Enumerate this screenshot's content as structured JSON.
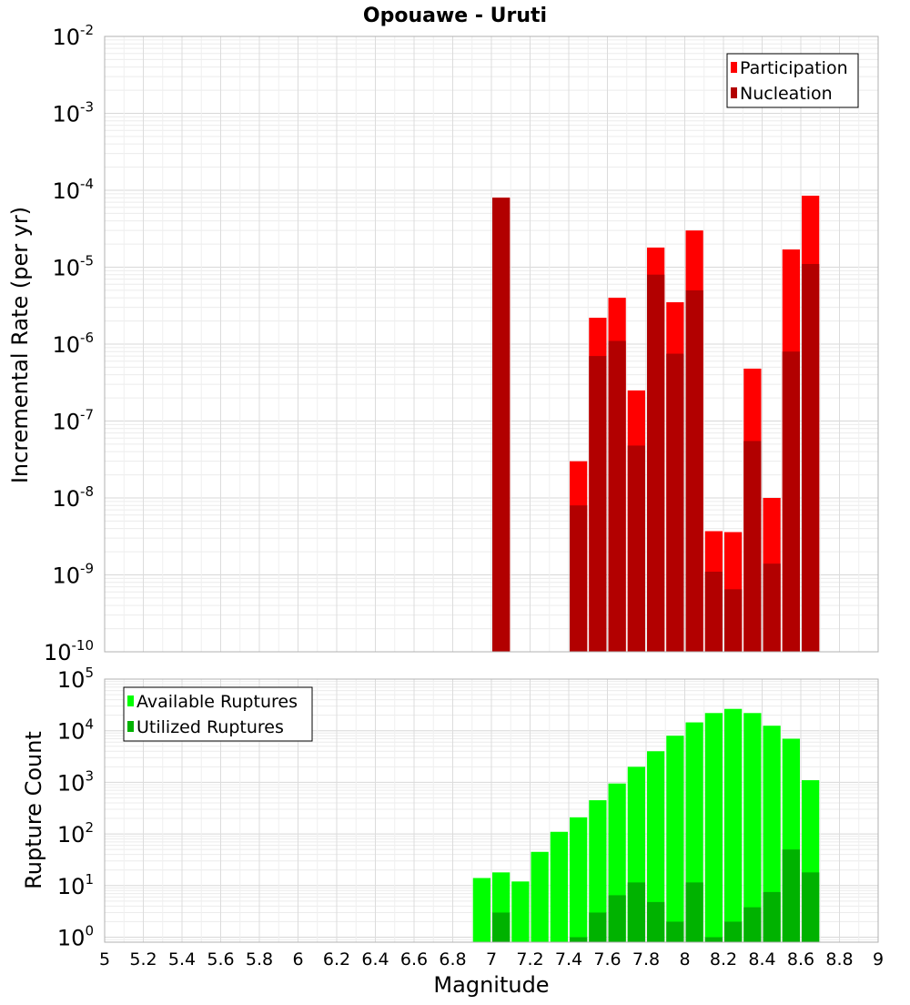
{
  "chart_data": [
    {
      "type": "bar",
      "title": "Opouawe - Uruti",
      "ylabel": "Incremental Rate (per yr)",
      "xlim": [
        5,
        9
      ],
      "ylim": [
        1e-10,
        0.01
      ],
      "yscale": "log",
      "grid": true,
      "legend_position": "top-right",
      "series": [
        {
          "name": "Participation",
          "color": "#ff0000",
          "points": [
            {
              "x": 7.05,
              "y": 8e-05
            },
            {
              "x": 7.45,
              "y": 3e-08
            },
            {
              "x": 7.55,
              "y": 2.2e-06
            },
            {
              "x": 7.65,
              "y": 4e-06
            },
            {
              "x": 7.75,
              "y": 2.5e-07
            },
            {
              "x": 7.85,
              "y": 1.8e-05
            },
            {
              "x": 7.95,
              "y": 3.5e-06
            },
            {
              "x": 8.05,
              "y": 3e-05
            },
            {
              "x": 8.15,
              "y": 3.7e-09
            },
            {
              "x": 8.25,
              "y": 3.6e-09
            },
            {
              "x": 8.35,
              "y": 4.8e-07
            },
            {
              "x": 8.45,
              "y": 1e-08
            },
            {
              "x": 8.55,
              "y": 1.7e-05
            },
            {
              "x": 8.65,
              "y": 8.5e-05
            }
          ]
        },
        {
          "name": "Nucleation",
          "color": "#b20000",
          "points": [
            {
              "x": 7.05,
              "y": 8e-05
            },
            {
              "x": 7.45,
              "y": 8e-09
            },
            {
              "x": 7.55,
              "y": 7e-07
            },
            {
              "x": 7.65,
              "y": 1.1e-06
            },
            {
              "x": 7.75,
              "y": 4.8e-08
            },
            {
              "x": 7.85,
              "y": 8e-06
            },
            {
              "x": 7.95,
              "y": 7.5e-07
            },
            {
              "x": 8.05,
              "y": 5e-06
            },
            {
              "x": 8.15,
              "y": 1.1e-09
            },
            {
              "x": 8.25,
              "y": 6.5e-10
            },
            {
              "x": 8.35,
              "y": 5.5e-08
            },
            {
              "x": 8.45,
              "y": 1.4e-09
            },
            {
              "x": 8.55,
              "y": 8e-07
            },
            {
              "x": 8.65,
              "y": 1.1e-05
            }
          ]
        }
      ]
    },
    {
      "type": "bar",
      "xlabel": "Magnitude",
      "ylabel": "Rupture Count",
      "xlim": [
        5,
        9
      ],
      "ylim": [
        0.8,
        100000.0
      ],
      "yscale": "log",
      "grid": true,
      "legend_position": "top-left",
      "xticks": [
        "5",
        "5.2",
        "5.4",
        "5.6",
        "5.8",
        "6",
        "6.2",
        "6.4",
        "6.6",
        "6.8",
        "7",
        "7.2",
        "7.4",
        "7.6",
        "7.8",
        "8",
        "8.2",
        "8.4",
        "8.6",
        "8.8",
        "9"
      ],
      "series": [
        {
          "name": "Available Ruptures",
          "color": "#00ff00",
          "points": [
            {
              "x": 6.95,
              "y": 14
            },
            {
              "x": 7.05,
              "y": 18
            },
            {
              "x": 7.15,
              "y": 12
            },
            {
              "x": 7.25,
              "y": 45
            },
            {
              "x": 7.35,
              "y": 110
            },
            {
              "x": 7.45,
              "y": 210
            },
            {
              "x": 7.55,
              "y": 450
            },
            {
              "x": 7.65,
              "y": 950
            },
            {
              "x": 7.75,
              "y": 2000
            },
            {
              "x": 7.85,
              "y": 4000
            },
            {
              "x": 7.95,
              "y": 8000
            },
            {
              "x": 8.05,
              "y": 14500
            },
            {
              "x": 8.15,
              "y": 22000
            },
            {
              "x": 8.25,
              "y": 26500
            },
            {
              "x": 8.35,
              "y": 22000
            },
            {
              "x": 8.45,
              "y": 12500
            },
            {
              "x": 8.55,
              "y": 7000
            },
            {
              "x": 8.65,
              "y": 1100
            }
          ]
        },
        {
          "name": "Utilized Ruptures",
          "color": "#00b200",
          "points": [
            {
              "x": 7.05,
              "y": 3
            },
            {
              "x": 7.45,
              "y": 1
            },
            {
              "x": 7.55,
              "y": 3
            },
            {
              "x": 7.65,
              "y": 6.5
            },
            {
              "x": 7.75,
              "y": 11.5
            },
            {
              "x": 7.85,
              "y": 4.8
            },
            {
              "x": 7.95,
              "y": 2
            },
            {
              "x": 8.05,
              "y": 11.5
            },
            {
              "x": 8.15,
              "y": 1
            },
            {
              "x": 8.25,
              "y": 2
            },
            {
              "x": 8.35,
              "y": 3.8
            },
            {
              "x": 8.45,
              "y": 7.5
            },
            {
              "x": 8.55,
              "y": 50
            },
            {
              "x": 8.65,
              "y": 18
            }
          ]
        }
      ]
    }
  ]
}
